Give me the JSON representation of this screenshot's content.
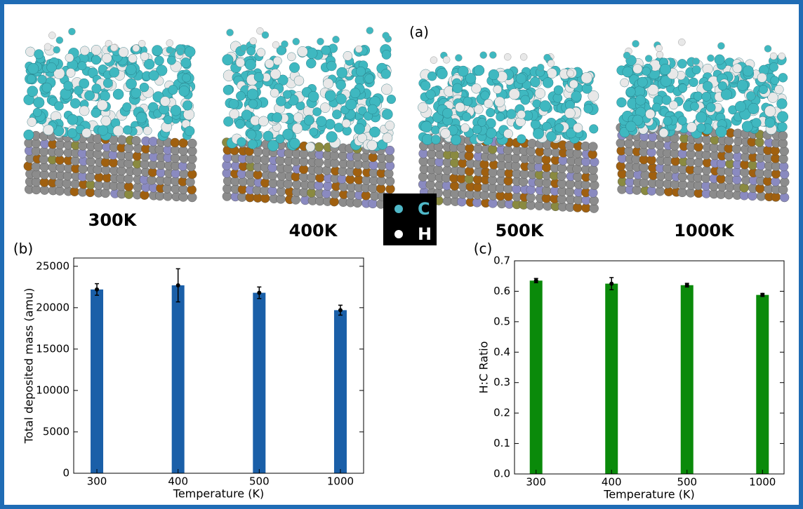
{
  "panel_a": {
    "label": "(a)",
    "temperatures": [
      "300K",
      "400K",
      "500K",
      "1000K"
    ],
    "legend": [
      "C",
      "H"
    ]
  },
  "chart_data": [
    {
      "type": "bar",
      "panel_label": "(b)",
      "categories": [
        "300",
        "400",
        "500",
        "1000"
      ],
      "values": [
        22200,
        22700,
        21800,
        19700
      ],
      "errors": [
        700,
        2000,
        700,
        600
      ],
      "color": "#1a5fa8",
      "error_color": "#000000",
      "xlabel": "Temperature (K)",
      "ylabel": "Total deposited mass (amu)",
      "ylim": [
        0,
        26000
      ],
      "yticks": [
        0,
        5000,
        10000,
        15000,
        20000,
        25000
      ]
    },
    {
      "type": "bar",
      "panel_label": "(c)",
      "categories": [
        "300",
        "400",
        "500",
        "1000"
      ],
      "values": [
        0.635,
        0.625,
        0.62,
        0.588
      ],
      "errors": [
        0.007,
        0.02,
        0.006,
        0.005
      ],
      "color": "#0a8a0a",
      "error_color": "#000000",
      "xlabel": "Temperature (K)",
      "ylabel": "H:C Ratio",
      "ylim": [
        0,
        0.7
      ],
      "yticks": [
        {
          "value": 0,
          "label": "0.0"
        },
        0.1,
        0.2,
        0.3,
        0.4,
        0.5,
        0.6,
        0.7
      ]
    }
  ]
}
